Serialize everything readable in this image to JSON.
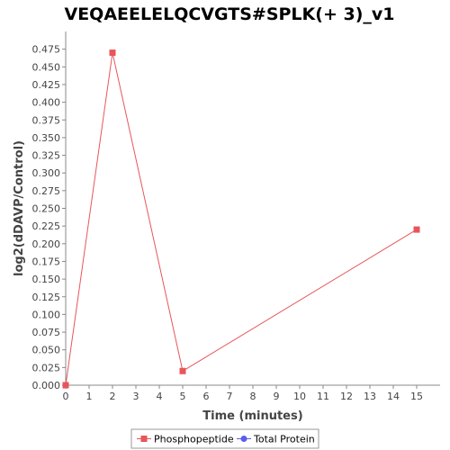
{
  "chart_data": {
    "type": "line",
    "title": "VEQAEELELQCVGTS#SPLK(+ 3)_v1",
    "xlabel": "Time (minutes)",
    "ylabel": "log2(dDAVP/Control)",
    "xlim": [
      0,
      16
    ],
    "ylim": [
      0,
      0.5
    ],
    "x_ticks": [
      0,
      1,
      2,
      3,
      4,
      5,
      6,
      7,
      8,
      9,
      10,
      11,
      12,
      13,
      14,
      15
    ],
    "y_ticks": [
      0.0,
      0.025,
      0.05,
      0.075,
      0.1,
      0.125,
      0.15,
      0.175,
      0.2,
      0.225,
      0.25,
      0.275,
      0.3,
      0.325,
      0.35,
      0.375,
      0.4,
      0.425,
      0.45,
      0.475
    ],
    "grid": false,
    "legend_position": "bottom",
    "series": [
      {
        "name": "Phosphopeptide",
        "color": "#e8555a",
        "marker": "square",
        "x": [
          0,
          2,
          5,
          15
        ],
        "y": [
          0.0,
          0.47,
          0.02,
          0.22
        ]
      },
      {
        "name": "Total Protein",
        "color": "#5b5bef",
        "marker": "circle",
        "x": [],
        "y": []
      }
    ]
  }
}
